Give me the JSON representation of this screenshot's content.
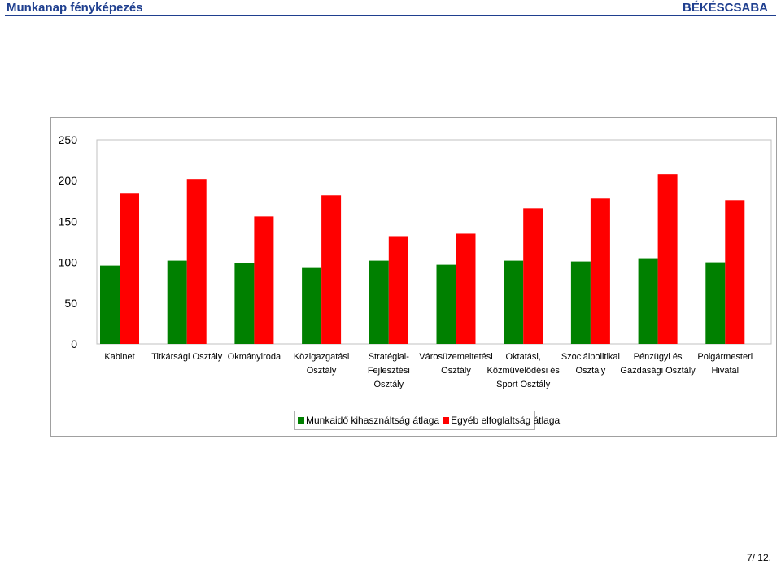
{
  "header": {
    "title": "Munkanap fényképezés",
    "city": "BÉKÉSCSABA"
  },
  "footer": {
    "page": "7/ 12."
  },
  "colors": {
    "series1": "#008000",
    "series2": "#ff0000",
    "grid": "#c0c0c0",
    "header": "#1f3f8f"
  },
  "chart_data": {
    "type": "bar",
    "ylim": [
      0,
      250
    ],
    "yticks": [
      0,
      50,
      100,
      150,
      200,
      250
    ],
    "grid": false,
    "legend_position": "bottom",
    "categories": [
      [
        "Kabinet"
      ],
      [
        "Titkársági Osztály"
      ],
      [
        "Okmányiroda"
      ],
      [
        "Közigazgatási",
        "Osztály"
      ],
      [
        "Stratégiai-",
        "Fejlesztési",
        "Osztály"
      ],
      [
        "Városüzemeltetési",
        "Osztály"
      ],
      [
        "Oktatási,",
        "Közművelődési és",
        "Sport Osztály"
      ],
      [
        "Szociálpolitikai",
        "Osztály"
      ],
      [
        "Pénzügyi és",
        "Gazdasági Osztály"
      ],
      [
        "Polgármesteri",
        "Hivatal"
      ]
    ],
    "series": [
      {
        "name": "Munkaidő kihasználtság átlaga",
        "color": "#008000",
        "values": [
          96,
          102,
          99,
          93,
          102,
          97,
          102,
          101,
          105,
          100
        ]
      },
      {
        "name": "Egyéb elfoglaltság átlaga",
        "color": "#ff0000",
        "values": [
          184,
          202,
          156,
          182,
          132,
          135,
          166,
          178,
          208,
          176
        ]
      }
    ]
  }
}
